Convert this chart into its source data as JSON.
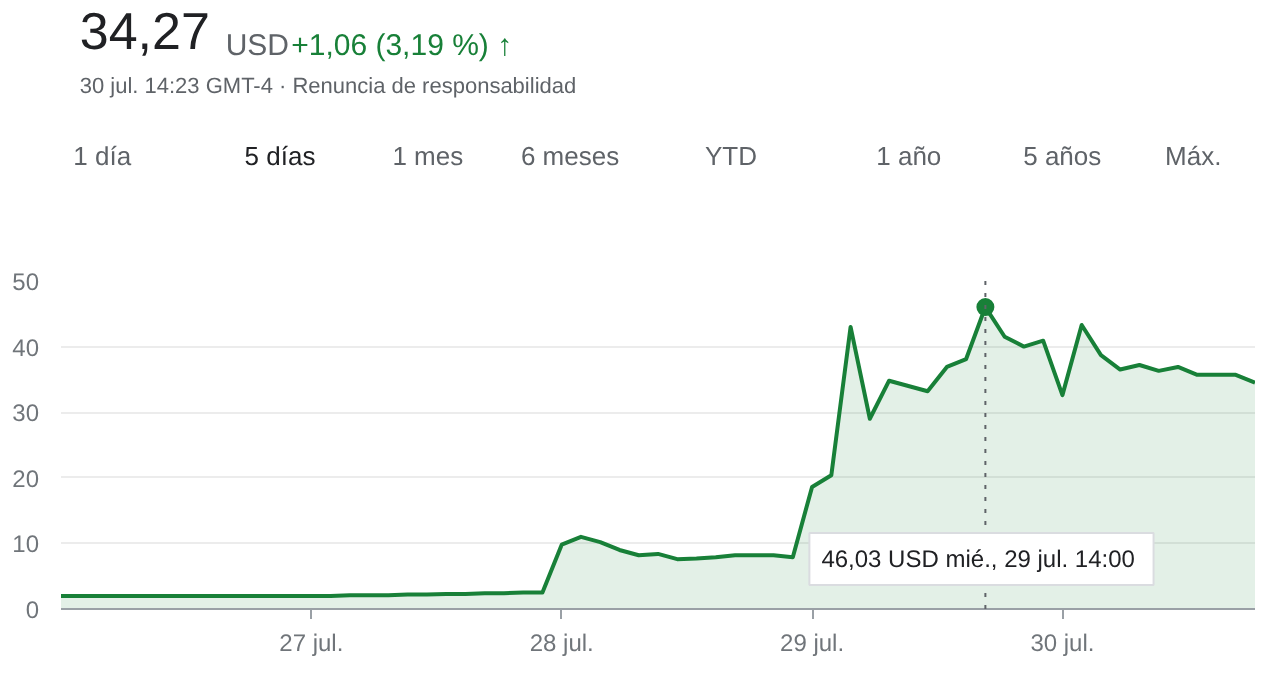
{
  "chart_data": {
    "type": "area",
    "title": "34,27",
    "subtitle": "30 jul. 14:23 GMT-4 · Renuncia de responsabilidad",
    "annotations": [
      "USD",
      "+1,06 (3,19 %) ↑",
      "1 día",
      "5 días",
      "1 mes",
      "6 meses",
      "YTD",
      "1 año",
      "5 años",
      "Máx.",
      "46,03 USD  mié., 29 jul. 14:00"
    ],
    "categories": [
      null,
      null,
      null,
      null,
      null,
      null,
      null,
      null,
      null,
      null,
      null,
      null,
      null,
      "27 jul.",
      null,
      null,
      null,
      null,
      null,
      null,
      null,
      null,
      null,
      null,
      null,
      null,
      "28 jul.",
      null,
      null,
      null,
      null,
      null,
      null,
      null,
      null,
      null,
      null,
      null,
      null,
      "29 jul.",
      null,
      null,
      null,
      null,
      null,
      null,
      null,
      null,
      null,
      null,
      null,
      null,
      "30 jul.",
      null,
      null,
      null,
      null,
      null,
      null,
      null,
      null,
      null,
      null
    ],
    "series": [
      {
        "color": "#188038",
        "values": [
          2.0,
          2.0,
          2.0,
          2.0,
          2.0,
          2.0,
          2.0,
          2.0,
          2.0,
          2.0,
          2.0,
          2.0,
          2.0,
          2.0,
          2.0,
          2.1,
          2.1,
          2.1,
          2.2,
          2.2,
          2.3,
          2.3,
          2.4,
          2.4,
          2.5,
          2.5,
          9.8,
          11,
          10.2,
          9.0,
          8.2,
          8.4,
          7.6,
          7.7,
          7.9,
          8.2,
          8.2,
          8.2,
          7.9,
          18.6,
          20.4,
          43,
          29,
          34.8,
          34,
          33.2,
          36.9,
          38.1,
          46.03,
          41.5,
          40,
          40.9,
          32.6,
          43.3,
          38.7,
          36.5,
          37.2,
          36.3,
          36.9,
          35.7,
          35.7,
          35.7,
          34.5
        ]
      }
    ],
    "ylim": [
      0,
      50
    ],
    "yticks": [
      0,
      10,
      20,
      30,
      40,
      50
    ],
    "grid": "y",
    "marker": "none",
    "line_style": "solid"
  }
}
